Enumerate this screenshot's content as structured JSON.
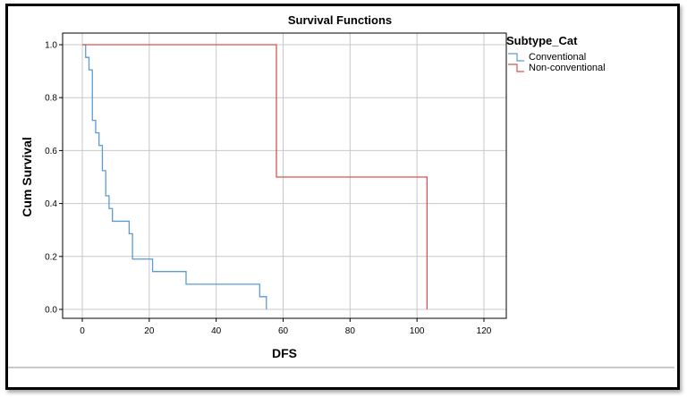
{
  "chart_data": {
    "type": "line",
    "title": "Survival Functions",
    "xlabel": "DFS",
    "ylabel": "Cum Survival",
    "xlim": [
      -5,
      125
    ],
    "ylim": [
      -0.02,
      1.04
    ],
    "xticks": [
      0,
      20,
      40,
      60,
      80,
      100,
      120
    ],
    "xtick_labels": [
      "0",
      "20",
      "40",
      "60",
      "80",
      "100",
      "120"
    ],
    "yticks": [
      0.0,
      0.2,
      0.4,
      0.6,
      0.8,
      1.0
    ],
    "ytick_labels": [
      "0.0",
      "0.2",
      "0.4",
      "0.6",
      "0.8",
      "1.0"
    ],
    "grid": true,
    "step": true,
    "legend": {
      "title": "Subtype_Cat",
      "placement": "right"
    },
    "series": [
      {
        "name": "Conventional",
        "color": "#5b9bd5",
        "x": [
          0,
          1,
          2,
          3,
          4,
          5,
          6,
          7,
          8,
          9,
          12,
          14,
          15,
          20,
          21,
          30,
          31,
          53,
          55
        ],
        "y": [
          1.0,
          0.952,
          0.905,
          0.714,
          0.667,
          0.619,
          0.524,
          0.429,
          0.381,
          0.333,
          0.333,
          0.286,
          0.19,
          0.19,
          0.143,
          0.143,
          0.095,
          0.048,
          0.0
        ]
      },
      {
        "name": "Non-conventional",
        "color": "#d9534f",
        "x": [
          0,
          58,
          103
        ],
        "y": [
          1.0,
          0.5,
          0.0
        ]
      }
    ]
  }
}
